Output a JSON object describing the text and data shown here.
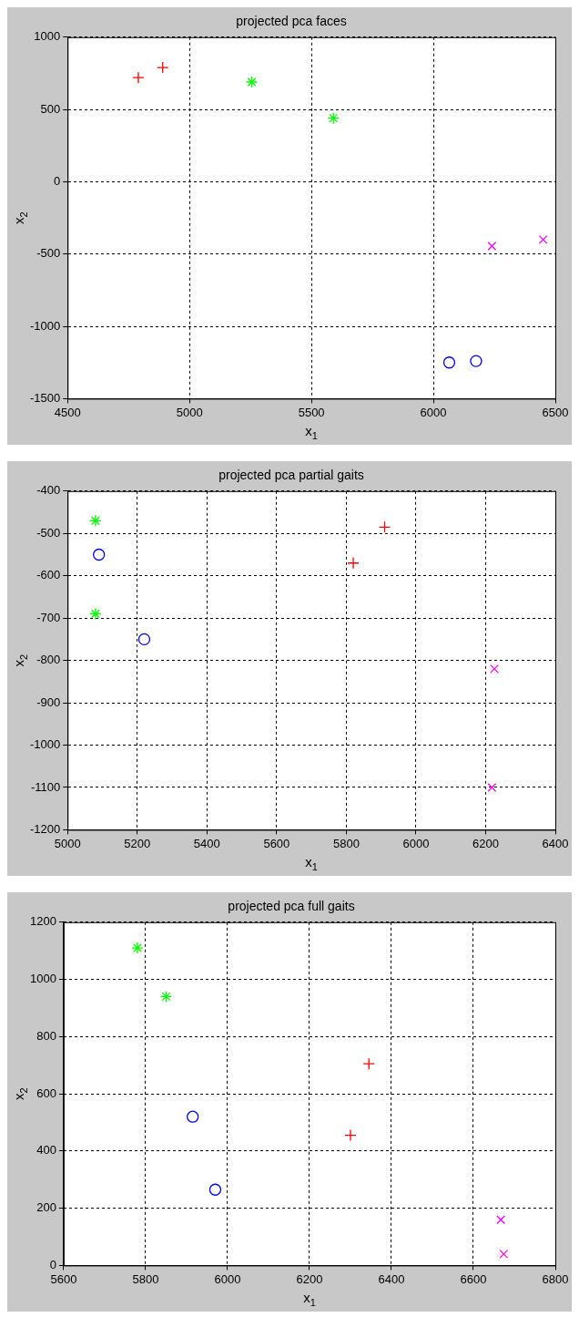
{
  "chart_data": [
    {
      "type": "scatter",
      "title": "projected pca faces",
      "xlabel": "x$_{1}$",
      "ylabel": "x$_{2}$",
      "xlim": [
        4500,
        6500
      ],
      "xticks": [
        4500,
        5000,
        5500,
        6000,
        6500
      ],
      "ylim": [
        -1500,
        1000
      ],
      "yticks": [
        -1500,
        -1000,
        -500,
        0,
        500,
        1000
      ],
      "grid": true,
      "legend": false,
      "series": [
        {
          "color": "#ff0000",
          "marker": "cross",
          "x": [
            4790,
            4890
          ],
          "values": [
            720,
            790
          ]
        },
        {
          "color": "#00ff00",
          "x": [
            5255,
            5590
          ],
          "values": [
            690,
            440
          ]
        },
        {
          "color": "#0000ff",
          "marker": "circle",
          "x": [
            6065,
            6175
          ],
          "values": [
            -1250,
            -1240
          ]
        },
        {
          "color": "#ff00ff",
          "marker": "x",
          "x": [
            6240,
            6450
          ],
          "values": [
            -445,
            -400
          ]
        }
      ]
    },
    {
      "type": "scatter",
      "title": "projected pca partial gaits",
      "xlabel": "x$_{1}$",
      "ylabel": "x$_{2}$",
      "xlim": [
        5000,
        6400
      ],
      "xticks": [
        5000,
        5200,
        5400,
        5600,
        5800,
        6000,
        6200,
        6400
      ],
      "ylim": [
        -1200,
        -400
      ],
      "yticks": [
        -1200,
        -1100,
        -1000,
        -900,
        -800,
        -700,
        -600,
        -500,
        -400
      ],
      "grid": true,
      "legend": false,
      "series": [
        {
          "color": "#ff0000",
          "marker": "cross",
          "x": [
            5820,
            5910
          ],
          "values": [
            -570,
            -485
          ]
        },
        {
          "color": "#00ff00",
          "x": [
            5080,
            5080
          ],
          "values": [
            -470,
            -690
          ]
        },
        {
          "color": "#0000ff",
          "marker": "circle",
          "x": [
            5090,
            5220
          ],
          "values": [
            -550,
            -750
          ]
        },
        {
          "color": "#ff00ff",
          "marker": "x",
          "x": [
            6225,
            6218
          ],
          "values": [
            -820,
            -1100
          ]
        }
      ]
    },
    {
      "type": "scatter",
      "title": "projected pca full gaits",
      "xlabel": "x$_{1}$",
      "ylabel": "x$_{2}$",
      "xlim": [
        5600,
        6800
      ],
      "xticks": [
        5600,
        5800,
        6000,
        6200,
        6400,
        6600,
        6800
      ],
      "ylim": [
        0,
        1200
      ],
      "yticks": [
        0,
        200,
        400,
        600,
        800,
        1000,
        1200
      ],
      "grid": true,
      "legend": false,
      "series": [
        {
          "color": "#ff0000",
          "marker": "cross",
          "x": [
            6300,
            6345
          ],
          "values": [
            455,
            705
          ]
        },
        {
          "color": "#00ff00",
          "x": [
            5780,
            5850
          ],
          "values": [
            1110,
            940
          ]
        },
        {
          "color": "#0000ff",
          "marker": "circle",
          "x": [
            5915,
            5970
          ],
          "values": [
            520,
            265
          ]
        },
        {
          "color": "#ff00ff",
          "marker": "x",
          "x": [
            6667,
            6674
          ],
          "values": [
            160,
            40
          ]
        }
      ]
    }
  ]
}
